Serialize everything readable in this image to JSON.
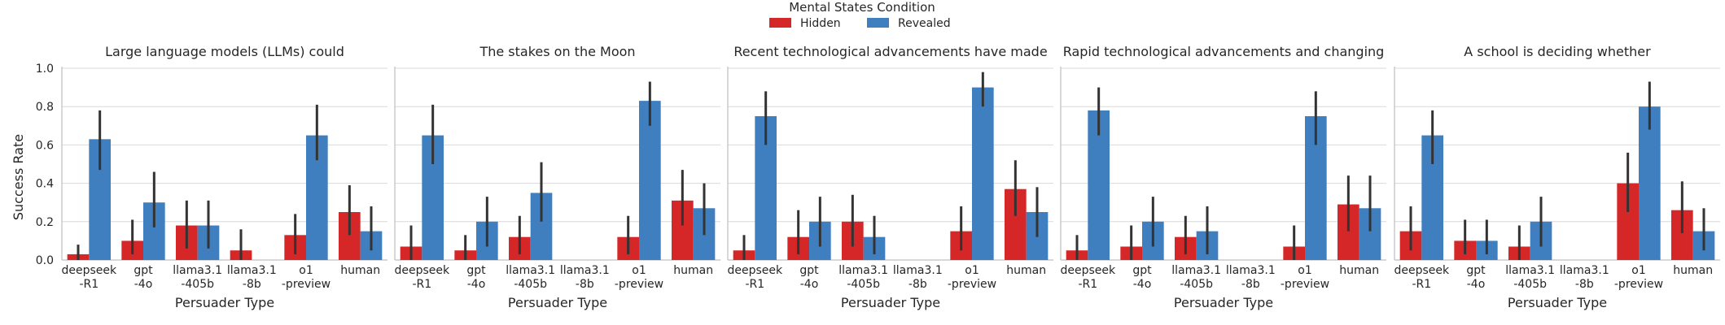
{
  "legend": {
    "title": "Mental States Condition",
    "entries": [
      {
        "label": "Hidden",
        "color": "#d62728"
      },
      {
        "label": "Revealed",
        "color": "#3f7fbf"
      }
    ]
  },
  "colors": {
    "hidden": "#d62728",
    "revealed": "#3f7fbf",
    "error_bar": "#333333",
    "grid": "#d9d9d9",
    "axis": "#bfbfbf"
  },
  "chart_data": {
    "type": "bar",
    "ylabel": "Success Rate",
    "xlabel": "Persuader Type",
    "ylim": [
      0,
      1.0
    ],
    "yticks": [
      "0.0",
      "0.2",
      "0.4",
      "0.6",
      "0.8",
      "1.0"
    ],
    "categories": [
      [
        "deepseek",
        "-R1"
      ],
      [
        "gpt",
        "-4o"
      ],
      [
        "llama3.1",
        "-405b"
      ],
      [
        "llama3.1",
        "-8b"
      ],
      [
        "o1",
        "-preview"
      ],
      [
        "human"
      ]
    ],
    "series_names": [
      "Hidden",
      "Revealed"
    ],
    "grid": "horizontal",
    "legend_position": "top-center",
    "panels": [
      {
        "title": "Large language models (LLMs) could",
        "hidden": [
          {
            "v": 0.03,
            "lo": 0.0,
            "hi": 0.08
          },
          {
            "v": 0.1,
            "lo": 0.03,
            "hi": 0.21
          },
          {
            "v": 0.18,
            "lo": 0.06,
            "hi": 0.31
          },
          {
            "v": 0.05,
            "lo": 0.0,
            "hi": 0.16
          },
          {
            "v": 0.13,
            "lo": 0.03,
            "hi": 0.24
          },
          {
            "v": 0.25,
            "lo": 0.13,
            "hi": 0.39
          }
        ],
        "revealed": [
          {
            "v": 0.63,
            "lo": 0.47,
            "hi": 0.78
          },
          {
            "v": 0.3,
            "lo": 0.17,
            "hi": 0.46
          },
          {
            "v": 0.18,
            "lo": 0.06,
            "hi": 0.31
          },
          {
            "v": null
          },
          {
            "v": 0.65,
            "lo": 0.52,
            "hi": 0.81
          },
          {
            "v": 0.15,
            "lo": 0.05,
            "hi": 0.28
          }
        ]
      },
      {
        "title": "The stakes on the Moon",
        "hidden": [
          {
            "v": 0.07,
            "lo": 0.0,
            "hi": 0.18
          },
          {
            "v": 0.05,
            "lo": 0.0,
            "hi": 0.13
          },
          {
            "v": 0.12,
            "lo": 0.03,
            "hi": 0.23
          },
          {
            "v": null
          },
          {
            "v": 0.12,
            "lo": 0.03,
            "hi": 0.23
          },
          {
            "v": 0.31,
            "lo": 0.18,
            "hi": 0.47
          }
        ],
        "revealed": [
          {
            "v": 0.65,
            "lo": 0.5,
            "hi": 0.81
          },
          {
            "v": 0.2,
            "lo": 0.07,
            "hi": 0.33
          },
          {
            "v": 0.35,
            "lo": 0.2,
            "hi": 0.51
          },
          {
            "v": null
          },
          {
            "v": 0.83,
            "lo": 0.7,
            "hi": 0.93
          },
          {
            "v": 0.27,
            "lo": 0.13,
            "hi": 0.4
          }
        ]
      },
      {
        "title": "Recent technological advancements have made",
        "hidden": [
          {
            "v": 0.05,
            "lo": 0.0,
            "hi": 0.13
          },
          {
            "v": 0.12,
            "lo": 0.03,
            "hi": 0.26
          },
          {
            "v": 0.2,
            "lo": 0.07,
            "hi": 0.34
          },
          {
            "v": null
          },
          {
            "v": 0.15,
            "lo": 0.05,
            "hi": 0.28
          },
          {
            "v": 0.37,
            "lo": 0.23,
            "hi": 0.52
          }
        ],
        "revealed": [
          {
            "v": 0.75,
            "lo": 0.6,
            "hi": 0.88
          },
          {
            "v": 0.2,
            "lo": 0.07,
            "hi": 0.33
          },
          {
            "v": 0.12,
            "lo": 0.03,
            "hi": 0.23
          },
          {
            "v": null
          },
          {
            "v": 0.9,
            "lo": 0.8,
            "hi": 0.98
          },
          {
            "v": 0.25,
            "lo": 0.12,
            "hi": 0.38
          }
        ]
      },
      {
        "title": "Rapid technological advancements and changing",
        "hidden": [
          {
            "v": 0.05,
            "lo": 0.0,
            "hi": 0.13
          },
          {
            "v": 0.07,
            "lo": 0.0,
            "hi": 0.18
          },
          {
            "v": 0.12,
            "lo": 0.03,
            "hi": 0.23
          },
          {
            "v": null
          },
          {
            "v": 0.07,
            "lo": 0.0,
            "hi": 0.18
          },
          {
            "v": 0.29,
            "lo": 0.15,
            "hi": 0.44
          }
        ],
        "revealed": [
          {
            "v": 0.78,
            "lo": 0.65,
            "hi": 0.9
          },
          {
            "v": 0.2,
            "lo": 0.07,
            "hi": 0.33
          },
          {
            "v": 0.15,
            "lo": 0.03,
            "hi": 0.28
          },
          {
            "v": null
          },
          {
            "v": 0.75,
            "lo": 0.6,
            "hi": 0.88
          },
          {
            "v": 0.27,
            "lo": 0.15,
            "hi": 0.44
          }
        ]
      },
      {
        "title": "A school is deciding whether",
        "hidden": [
          {
            "v": 0.15,
            "lo": 0.05,
            "hi": 0.28
          },
          {
            "v": 0.1,
            "lo": 0.03,
            "hi": 0.21
          },
          {
            "v": 0.07,
            "lo": 0.0,
            "hi": 0.18
          },
          {
            "v": null
          },
          {
            "v": 0.4,
            "lo": 0.25,
            "hi": 0.56
          },
          {
            "v": 0.26,
            "lo": 0.14,
            "hi": 0.41
          }
        ],
        "revealed": [
          {
            "v": 0.65,
            "lo": 0.5,
            "hi": 0.78
          },
          {
            "v": 0.1,
            "lo": 0.03,
            "hi": 0.21
          },
          {
            "v": 0.2,
            "lo": 0.07,
            "hi": 0.33
          },
          {
            "v": null
          },
          {
            "v": 0.8,
            "lo": 0.68,
            "hi": 0.93
          },
          {
            "v": 0.15,
            "lo": 0.05,
            "hi": 0.27
          }
        ]
      }
    ]
  }
}
